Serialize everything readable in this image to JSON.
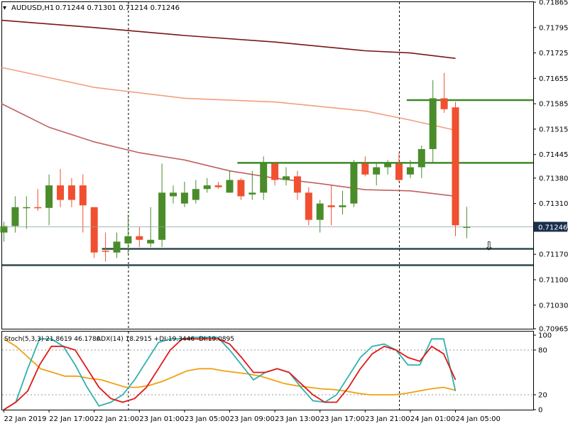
{
  "header": {
    "symbol": "AUDUSD,H1",
    "ohlc": "0.71244 0.71301 0.71214 0.71246"
  },
  "indicator_header": {
    "stoch": "Stoch(5,3,3) 21.8619 46.1780",
    "adx": "ADX(14) 18.2915 +DI:19.3446 -DI:19.0895"
  },
  "current_price_label": "0.71246",
  "arrow": {
    "name": "down-arrow-icon",
    "glyph": "⇩",
    "at_price": 0.71194
  },
  "colors": {
    "bull": "#4a8c2a",
    "bear": "#f05030",
    "ma_slow": "#7a1515",
    "ma_mid": "#f0a080",
    "ma_fast": "#c06060",
    "level_green": "#3a8a28",
    "level_dark": "#2e4a4a",
    "stoch_main": "#30b0b0",
    "stoch_signal": "#e01818",
    "adx": "#f0a010"
  },
  "chart_data": {
    "type": "candlestick",
    "price_axis": {
      "min": 0.70965,
      "max": 0.71865,
      "ticks": [
        "0.71865",
        "0.71795",
        "0.71725",
        "0.71655",
        "0.71585",
        "0.71515",
        "0.71445",
        "0.71380",
        "0.71310",
        "0.71240",
        "0.71170",
        "0.71100",
        "0.71030",
        "0.70965"
      ]
    },
    "time_labels": [
      {
        "text": "22 Jan 2019",
        "bar": 0
      },
      {
        "text": "22 Jan 17:00",
        "bar": 4
      },
      {
        "text": "22 Jan 21:00",
        "bar": 8
      },
      {
        "text": "23 Jan 01:00",
        "bar": 12
      },
      {
        "text": "23 Jan 05:00",
        "bar": 16
      },
      {
        "text": "23 Jan 09:00",
        "bar": 20
      },
      {
        "text": "23 Jan 13:00",
        "bar": 24
      },
      {
        "text": "23 Jan 17:00",
        "bar": 28
      },
      {
        "text": "23 Jan 21:00",
        "bar": 32
      },
      {
        "text": "24 Jan 01:00",
        "bar": 36
      },
      {
        "text": "24 Jan 05:00",
        "bar": 40
      }
    ],
    "session_separators": [
      11,
      35
    ],
    "candles": [
      {
        "o": 0.7123,
        "h": 0.7126,
        "l": 0.71205,
        "c": 0.71248
      },
      {
        "o": 0.71248,
        "h": 0.7133,
        "l": 0.7123,
        "c": 0.713
      },
      {
        "o": 0.713,
        "h": 0.7133,
        "l": 0.7124,
        "c": 0.713
      },
      {
        "o": 0.713,
        "h": 0.7135,
        "l": 0.7129,
        "c": 0.71298
      },
      {
        "o": 0.71298,
        "h": 0.7139,
        "l": 0.7125,
        "c": 0.7136
      },
      {
        "o": 0.7136,
        "h": 0.71405,
        "l": 0.713,
        "c": 0.7132
      },
      {
        "o": 0.7136,
        "h": 0.7138,
        "l": 0.713,
        "c": 0.7132
      },
      {
        "o": 0.7136,
        "h": 0.7139,
        "l": 0.7123,
        "c": 0.71305
      },
      {
        "o": 0.713,
        "h": 0.713,
        "l": 0.7116,
        "c": 0.71175
      },
      {
        "o": 0.7118,
        "h": 0.7123,
        "l": 0.7115,
        "c": 0.71178
      },
      {
        "o": 0.71175,
        "h": 0.7123,
        "l": 0.7116,
        "c": 0.71205
      },
      {
        "o": 0.712,
        "h": 0.7128,
        "l": 0.7117,
        "c": 0.7122
      },
      {
        "o": 0.7122,
        "h": 0.71245,
        "l": 0.7119,
        "c": 0.7121
      },
      {
        "o": 0.712,
        "h": 0.713,
        "l": 0.7119,
        "c": 0.7121
      },
      {
        "o": 0.7121,
        "h": 0.7142,
        "l": 0.7119,
        "c": 0.7134
      },
      {
        "o": 0.7133,
        "h": 0.7136,
        "l": 0.7131,
        "c": 0.7134
      },
      {
        "o": 0.7131,
        "h": 0.7137,
        "l": 0.713,
        "c": 0.7134
      },
      {
        "o": 0.7132,
        "h": 0.71375,
        "l": 0.7131,
        "c": 0.7135
      },
      {
        "o": 0.7135,
        "h": 0.7138,
        "l": 0.7134,
        "c": 0.7136
      },
      {
        "o": 0.7136,
        "h": 0.7137,
        "l": 0.7135,
        "c": 0.71355
      },
      {
        "o": 0.7134,
        "h": 0.714,
        "l": 0.7134,
        "c": 0.71375
      },
      {
        "o": 0.71375,
        "h": 0.7138,
        "l": 0.7132,
        "c": 0.7133
      },
      {
        "o": 0.71335,
        "h": 0.714,
        "l": 0.7132,
        "c": 0.7134
      },
      {
        "o": 0.7134,
        "h": 0.7144,
        "l": 0.7132,
        "c": 0.7142
      },
      {
        "o": 0.7142,
        "h": 0.71425,
        "l": 0.7136,
        "c": 0.71375
      },
      {
        "o": 0.71375,
        "h": 0.7141,
        "l": 0.7136,
        "c": 0.71385
      },
      {
        "o": 0.71385,
        "h": 0.714,
        "l": 0.7132,
        "c": 0.7134
      },
      {
        "o": 0.7134,
        "h": 0.71355,
        "l": 0.7125,
        "c": 0.71265
      },
      {
        "o": 0.71265,
        "h": 0.7132,
        "l": 0.7123,
        "c": 0.7131
      },
      {
        "o": 0.71305,
        "h": 0.7136,
        "l": 0.7125,
        "c": 0.713
      },
      {
        "o": 0.713,
        "h": 0.71345,
        "l": 0.7128,
        "c": 0.71305
      },
      {
        "o": 0.7131,
        "h": 0.7143,
        "l": 0.713,
        "c": 0.7142
      },
      {
        "o": 0.7142,
        "h": 0.7144,
        "l": 0.71385,
        "c": 0.7139
      },
      {
        "o": 0.7139,
        "h": 0.7142,
        "l": 0.7136,
        "c": 0.7141
      },
      {
        "o": 0.7141,
        "h": 0.7143,
        "l": 0.7139,
        "c": 0.7142
      },
      {
        "o": 0.7142,
        "h": 0.7145,
        "l": 0.7137,
        "c": 0.71375
      },
      {
        "o": 0.7139,
        "h": 0.7143,
        "l": 0.7138,
        "c": 0.7141
      },
      {
        "o": 0.7141,
        "h": 0.7147,
        "l": 0.7138,
        "c": 0.7146
      },
      {
        "o": 0.7146,
        "h": 0.7165,
        "l": 0.7142,
        "c": 0.716
      },
      {
        "o": 0.716,
        "h": 0.7167,
        "l": 0.7156,
        "c": 0.7157
      },
      {
        "o": 0.71575,
        "h": 0.7159,
        "l": 0.7122,
        "c": 0.7125
      },
      {
        "o": 0.71246,
        "h": 0.71301,
        "l": 0.71214,
        "c": 0.71246
      }
    ],
    "moving_averages": [
      {
        "color_key": "ma_slow",
        "points": [
          [
            -0.2,
            0.71815
          ],
          [
            8,
            0.71795
          ],
          [
            16,
            0.71773
          ],
          [
            24,
            0.71755
          ],
          [
            32,
            0.71731
          ],
          [
            36,
            0.71725
          ],
          [
            40,
            0.7171
          ]
        ]
      },
      {
        "color_key": "ma_mid",
        "points": [
          [
            -0.2,
            0.71685
          ],
          [
            8,
            0.7163
          ],
          [
            16,
            0.716
          ],
          [
            24,
            0.7159
          ],
          [
            32,
            0.71565
          ],
          [
            36,
            0.7154
          ],
          [
            40,
            0.71512
          ]
        ]
      },
      {
        "color_key": "ma_fast",
        "points": [
          [
            -0.2,
            0.71585
          ],
          [
            4,
            0.7152
          ],
          [
            8,
            0.7148
          ],
          [
            12,
            0.7145
          ],
          [
            16,
            0.7143
          ],
          [
            20,
            0.714
          ],
          [
            24,
            0.7138
          ],
          [
            28,
            0.71365
          ],
          [
            32,
            0.71348
          ],
          [
            36,
            0.71345
          ],
          [
            40,
            0.7133
          ]
        ]
      }
    ],
    "levels": [
      {
        "color_key": "level_green",
        "price": 0.71595,
        "from_bar": 36
      },
      {
        "color_key": "level_green",
        "price": 0.71422,
        "from_bar": 21
      },
      {
        "color_key": "level_dark",
        "price": 0.71185,
        "from_bar": 9
      },
      {
        "color_key": "level_dark",
        "price": 0.7114,
        "from_bar": -0.2
      }
    ],
    "current_price": 0.71246,
    "oscillator": {
      "range": [
        0,
        100
      ],
      "tick_labels": [
        "100",
        "80",
        "20",
        "0"
      ],
      "dashed_levels": [
        80,
        20
      ],
      "stoch_main": [
        0,
        10,
        55,
        95,
        95,
        85,
        60,
        30,
        5,
        10,
        20,
        40,
        65,
        90,
        95,
        95,
        97,
        97,
        97,
        80,
        60,
        40,
        50,
        55,
        50,
        30,
        12,
        10,
        20,
        45,
        70,
        85,
        88,
        80,
        60,
        60,
        95,
        95,
        25
      ],
      "stoch_signal": [
        0,
        10,
        25,
        60,
        85,
        85,
        80,
        55,
        30,
        15,
        10,
        15,
        30,
        55,
        80,
        95,
        95,
        95,
        95,
        88,
        70,
        50,
        50,
        55,
        50,
        35,
        20,
        10,
        10,
        30,
        55,
        75,
        85,
        80,
        70,
        65,
        85,
        75,
        40
      ],
      "adx": [
        95,
        85,
        70,
        55,
        50,
        45,
        45,
        42,
        40,
        35,
        30,
        30,
        33,
        38,
        45,
        52,
        55,
        55,
        52,
        50,
        48,
        45,
        40,
        35,
        32,
        30,
        28,
        27,
        25,
        22,
        20,
        20,
        20,
        22,
        25,
        28,
        30,
        26
      ]
    }
  }
}
